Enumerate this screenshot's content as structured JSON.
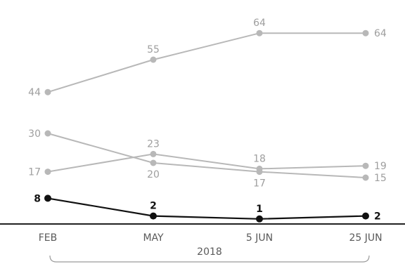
{
  "chart_data": {
    "type": "line",
    "categories": [
      "FEB",
      "MAY",
      "5 JUN",
      "25 JUN"
    ],
    "group_label": "2018",
    "ylim": [
      0,
      70
    ],
    "grid": false,
    "series": [
      {
        "values": [
          44,
          55,
          64,
          64
        ],
        "color": "#b8b8b8",
        "label_color": "#9e9e9e",
        "emphasis": false
      },
      {
        "values": [
          30,
          20,
          17,
          15
        ],
        "color": "#b8b8b8",
        "label_color": "#9e9e9e",
        "emphasis": false
      },
      {
        "values": [
          17,
          23,
          18,
          19
        ],
        "color": "#b8b8b8",
        "label_color": "#9e9e9e",
        "emphasis": false
      },
      {
        "values": [
          8,
          2,
          1,
          2
        ],
        "color": "#111111",
        "label_color": "#111111",
        "emphasis": true
      }
    ]
  }
}
